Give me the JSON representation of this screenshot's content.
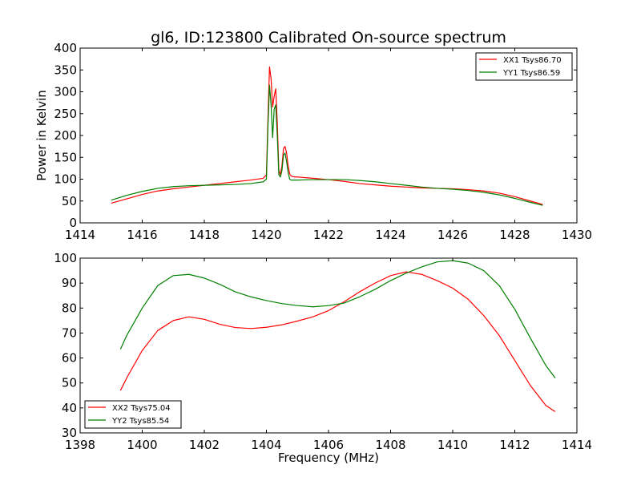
{
  "title": "gl6, ID:123800 Calibrated On-source spectrum",
  "colors": {
    "xx": "#ff0000",
    "yy": "#007f00",
    "frame": "#000000"
  },
  "chart_data": [
    {
      "type": "line",
      "xlabel": "",
      "ylabel": "Power in Kelvin",
      "xlim": [
        1414,
        1430
      ],
      "ylim": [
        0,
        400
      ],
      "xticks": [
        1414,
        1416,
        1418,
        1420,
        1422,
        1424,
        1426,
        1428,
        1430
      ],
      "yticks": [
        0,
        50,
        100,
        150,
        200,
        250,
        300,
        350,
        400
      ],
      "legend_position": "top-right",
      "series": [
        {
          "name": "XX1 Tsys86.70",
          "color": "#ff0000",
          "x": [
            1415.0,
            1415.5,
            1416.0,
            1416.5,
            1417.0,
            1417.5,
            1418.0,
            1418.5,
            1419.0,
            1419.5,
            1419.9,
            1420.0,
            1420.05,
            1420.1,
            1420.15,
            1420.2,
            1420.25,
            1420.3,
            1420.35,
            1420.4,
            1420.45,
            1420.5,
            1420.55,
            1420.6,
            1420.65,
            1420.7,
            1420.75,
            1420.8,
            1420.85,
            1420.9,
            1421.0,
            1421.5,
            1422.0,
            1422.5,
            1423.0,
            1423.5,
            1424.0,
            1424.5,
            1425.0,
            1425.5,
            1426.0,
            1426.5,
            1427.0,
            1427.5,
            1428.0,
            1428.5,
            1428.9
          ],
          "y": [
            45,
            55,
            65,
            73,
            78,
            82,
            86,
            90,
            94,
            98,
            102,
            110,
            240,
            357,
            330,
            265,
            290,
            307,
            230,
            120,
            110,
            130,
            170,
            175,
            160,
            130,
            112,
            107,
            106,
            105,
            105,
            102,
            99,
            95,
            90,
            87,
            84,
            82,
            80,
            79,
            78,
            76,
            73,
            68,
            60,
            50,
            42
          ]
        },
        {
          "name": "YY1 Tsys86.59",
          "color": "#007f00",
          "x": [
            1415.0,
            1415.5,
            1416.0,
            1416.5,
            1417.0,
            1417.5,
            1418.0,
            1418.5,
            1419.0,
            1419.5,
            1419.9,
            1420.0,
            1420.05,
            1420.1,
            1420.15,
            1420.2,
            1420.25,
            1420.3,
            1420.35,
            1420.4,
            1420.45,
            1420.5,
            1420.55,
            1420.6,
            1420.65,
            1420.7,
            1420.75,
            1420.8,
            1420.85,
            1420.9,
            1421.0,
            1421.5,
            1422.0,
            1422.5,
            1423.0,
            1423.5,
            1424.0,
            1424.5,
            1425.0,
            1425.5,
            1426.0,
            1426.5,
            1427.0,
            1427.5,
            1428.0,
            1428.5,
            1428.9
          ],
          "y": [
            52,
            63,
            72,
            79,
            83,
            85,
            86,
            87,
            88,
            90,
            94,
            100,
            220,
            315,
            270,
            195,
            260,
            270,
            200,
            110,
            105,
            120,
            155,
            160,
            140,
            115,
            100,
            98,
            98,
            98,
            98,
            99,
            99,
            99,
            97,
            94,
            90,
            86,
            82,
            79,
            77,
            74,
            70,
            64,
            56,
            47,
            40
          ]
        }
      ]
    },
    {
      "type": "line",
      "xlabel": "Frequency (MHz)",
      "ylabel": "",
      "xlim": [
        1398,
        1414
      ],
      "ylim": [
        30,
        100
      ],
      "xticks": [
        1398,
        1400,
        1402,
        1404,
        1406,
        1408,
        1410,
        1412,
        1414
      ],
      "yticks": [
        30,
        40,
        50,
        60,
        70,
        80,
        90,
        100
      ],
      "legend_position": "bottom-left",
      "series": [
        {
          "name": "XX2 Tsys75.04",
          "color": "#ff0000",
          "x": [
            1399.3,
            1399.5,
            1400.0,
            1400.5,
            1401.0,
            1401.5,
            1402.0,
            1402.5,
            1403.0,
            1403.5,
            1404.0,
            1404.5,
            1405.0,
            1405.5,
            1406.0,
            1406.5,
            1407.0,
            1407.5,
            1408.0,
            1408.5,
            1409.0,
            1409.5,
            1410.0,
            1410.5,
            1411.0,
            1411.5,
            1412.0,
            1412.5,
            1413.0,
            1413.3
          ],
          "y": [
            47,
            52,
            63,
            71,
            75,
            76.5,
            75.5,
            73.5,
            72.2,
            71.8,
            72.3,
            73.3,
            74.8,
            76.5,
            79,
            82.5,
            86.5,
            90,
            93,
            94.5,
            93.5,
            91,
            88,
            83.5,
            77,
            69,
            59,
            49,
            41,
            38.5
          ]
        },
        {
          "name": "YY2 Tsys85.54",
          "color": "#007f00",
          "x": [
            1399.3,
            1399.5,
            1400.0,
            1400.5,
            1401.0,
            1401.5,
            1402.0,
            1402.5,
            1403.0,
            1403.5,
            1404.0,
            1404.5,
            1405.0,
            1405.5,
            1406.0,
            1406.5,
            1407.0,
            1407.5,
            1408.0,
            1408.5,
            1409.0,
            1409.5,
            1410.0,
            1410.5,
            1411.0,
            1411.5,
            1412.0,
            1412.5,
            1413.0,
            1413.3
          ],
          "y": [
            63.5,
            69,
            80,
            89,
            93,
            93.5,
            92,
            89.5,
            86.5,
            84.5,
            83,
            81.8,
            81,
            80.5,
            81,
            82,
            84.5,
            87.5,
            91,
            94,
            96.5,
            98.5,
            99,
            98,
            95,
            89,
            79.5,
            68,
            57,
            52
          ]
        }
      ]
    }
  ]
}
